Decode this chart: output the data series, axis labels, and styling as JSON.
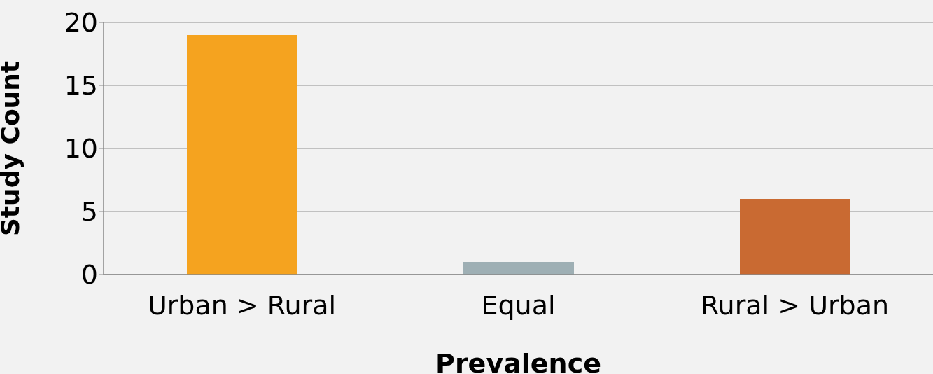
{
  "chart_data": {
    "type": "bar",
    "xlabel": "Prevalence",
    "ylabel": "Study Count",
    "categories": [
      "Urban > Rural",
      "Equal",
      "Rural > Urban"
    ],
    "values": [
      19,
      1,
      6
    ],
    "colors": [
      "#f5a31f",
      "#9eafb4",
      "#c96a32"
    ],
    "ylim": [
      0,
      20
    ],
    "yticks": [
      0,
      5,
      10,
      15,
      20
    ],
    "grid": "y",
    "legend": false
  }
}
